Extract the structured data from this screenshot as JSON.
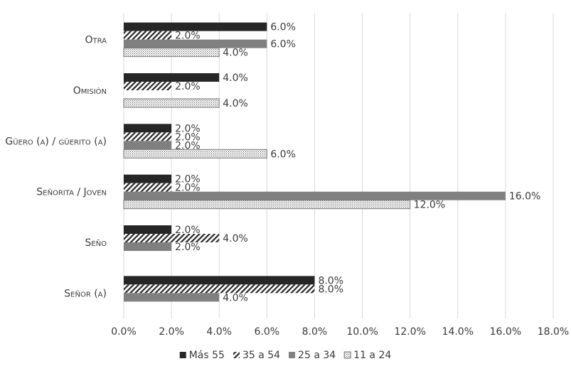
{
  "chart_data": {
    "type": "bar",
    "orientation": "horizontal",
    "title": "",
    "xlabel": "",
    "ylabel": "",
    "xlim": [
      0,
      18
    ],
    "ticks": [
      0,
      2,
      4,
      6,
      8,
      10,
      12,
      14,
      16,
      18
    ],
    "tick_labels": [
      "0.0%",
      "2.0%",
      "4.0%",
      "6.0%",
      "8.0%",
      "10.0%",
      "12.0%",
      "14.0%",
      "16.0%",
      "18.0%"
    ],
    "grid": true,
    "legend_position": "bottom",
    "categories": [
      "Otra",
      "Omisión",
      "Güero (a) / güerito (a)",
      "Señorita / Joven",
      "Seño",
      "Señor (a)"
    ],
    "series": [
      {
        "name": "Más 55",
        "pattern": "solid-dark",
        "values": [
          6,
          4,
          2,
          2,
          2,
          8
        ],
        "labels": [
          "6.0%",
          "4.0%",
          "2.0%",
          "2.0%",
          "2.0%",
          "8.0%"
        ]
      },
      {
        "name": "35 a 54",
        "pattern": "diagonal",
        "values": [
          2,
          2,
          2,
          2,
          4,
          8
        ],
        "labels": [
          "2.0%",
          "2.0%",
          "2.0%",
          "2.0%",
          "4.0%",
          "8.0%"
        ]
      },
      {
        "name": "25 a 34",
        "pattern": "solid-gray",
        "values": [
          6,
          0,
          2,
          16,
          2,
          4
        ],
        "labels": [
          "6.0%",
          null,
          "2.0%",
          "16.0%",
          "2.0%",
          "4.0%"
        ]
      },
      {
        "name": "11 a 24",
        "pattern": "dotted",
        "values": [
          4,
          4,
          6,
          12,
          0,
          0
        ],
        "labels": [
          "4.0%",
          "4.0%",
          "6.0%",
          "12.0%",
          null,
          null
        ]
      }
    ],
    "colors": {
      "dark": "#262626",
      "gray": "#808080",
      "text": "#3a3a3a",
      "grid": "#d9d9d9"
    }
  }
}
